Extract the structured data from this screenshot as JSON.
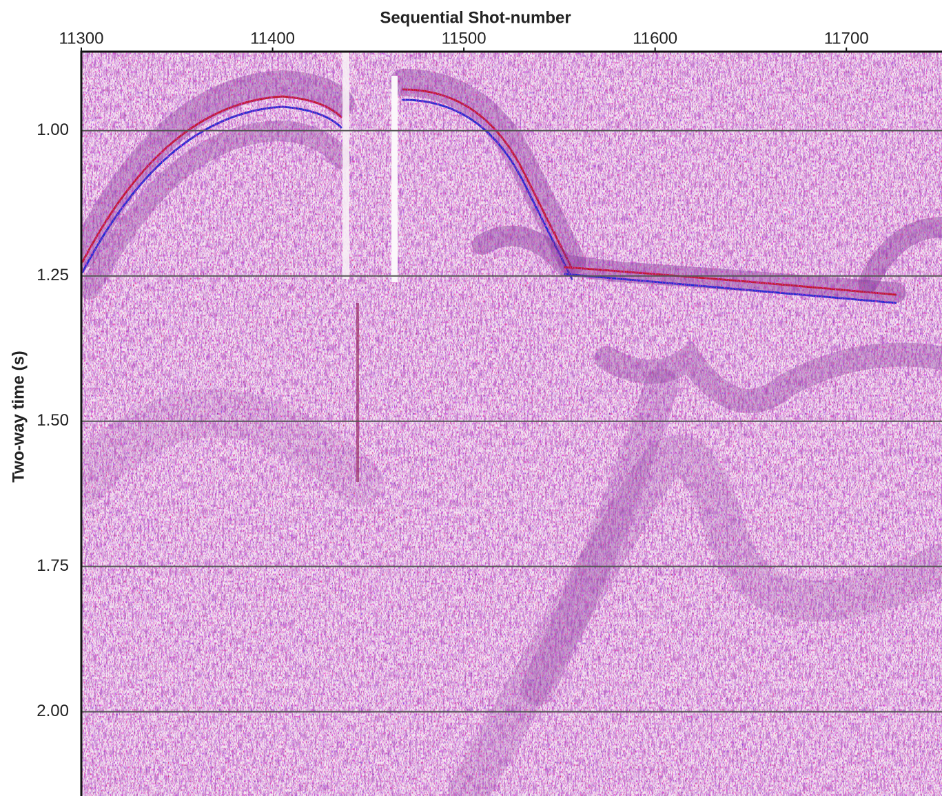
{
  "chart_data": {
    "type": "seismic-section",
    "x_label": "Sequential Shot-number",
    "y_label": "Two-way time (s)",
    "xlim": [
      11300,
      11750
    ],
    "xticks": [
      11300,
      11400,
      11500,
      11600,
      11700
    ],
    "ylim": [
      0.864,
      2.145
    ],
    "yticks": [
      {
        "value": 1,
        "label": "1.00"
      },
      1.25,
      {
        "value": 1.5,
        "label": "1.50"
      },
      1.75,
      {
        "value": 2,
        "label": "2.00"
      }
    ],
    "y_inverted": true,
    "grid": true
  }
}
